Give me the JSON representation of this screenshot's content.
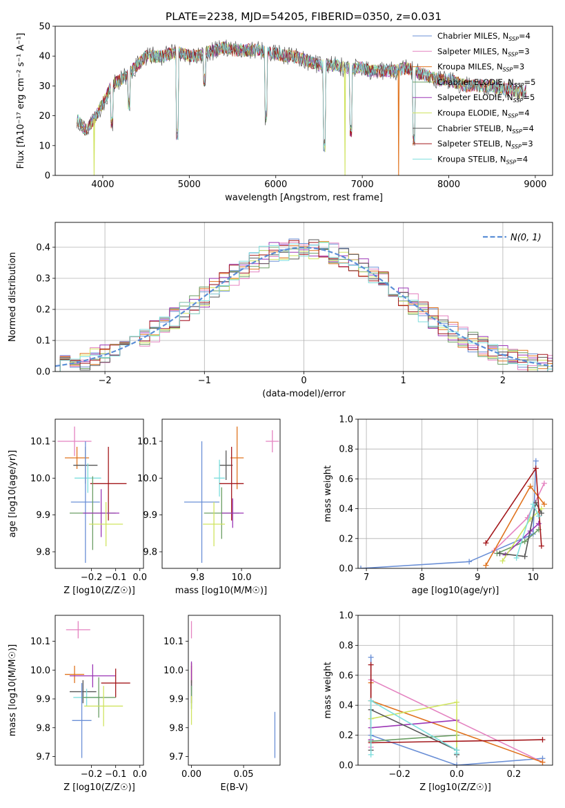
{
  "figure_title": "PLATE=2238, MJD=54205, FIBERID=0350, z=0.031",
  "colors": {
    "Chabrier MILES": "#6a8fd6",
    "Salpeter MILES": "#e482c0",
    "Kroupa MILES": "#e0731e",
    "Chabrier ELODIE": "#6a9e63",
    "Salpeter ELODIE": "#9b35b5",
    "Kroupa ELODIE": "#cfe35e",
    "Chabrier STELIB": "#555555",
    "Salpeter STELIB": "#a3171b",
    "Kroupa STELIB": "#7ddedd",
    "normal": "#5b8ed6",
    "grid": "#b0b0b0"
  },
  "chart_data": [
    {
      "id": "spectrum",
      "type": "line",
      "title": "PLATE=2238, MJD=54205, FIBERID=0350, z=0.031",
      "xlabel": "wavelength [Angstrom, rest frame]",
      "ylabel": "Flux [f_λ10^-17 erg cm^-2 s^-1 A^-1]",
      "xlim": [
        3450,
        9200
      ],
      "ylim": [
        0,
        50
      ],
      "xticks": [
        4000,
        5000,
        6000,
        7000,
        8000,
        9000
      ],
      "yticks": [
        0,
        10,
        20,
        30,
        40,
        50
      ],
      "grid": false,
      "legend": "right",
      "legend_entries": [
        {
          "name": "Chabrier MILES",
          "sub": "N",
          "ssp": "SSP",
          "n": "=4"
        },
        {
          "name": "Salpeter MILES",
          "sub": "N",
          "ssp": "SSP",
          "n": "=3"
        },
        {
          "name": "Kroupa MILES",
          "sub": "N",
          "ssp": "SSP",
          "n": "=3"
        },
        {
          "name": "Chabrier ELODIE",
          "sub": "N",
          "ssp": "SSP",
          "n": "=5"
        },
        {
          "name": "Salpeter ELODIE",
          "sub": "N",
          "ssp": "SSP",
          "n": "=5"
        },
        {
          "name": "Kroupa ELODIE",
          "sub": "N",
          "ssp": "SSP",
          "n": "=4"
        },
        {
          "name": "Chabrier STELIB",
          "sub": "N",
          "ssp": "SSP",
          "n": "=4"
        },
        {
          "name": "Salpeter STELIB",
          "sub": "N",
          "ssp": "SSP",
          "n": "=3"
        },
        {
          "name": "Kroupa STELIB",
          "sub": "N",
          "ssp": "SSP",
          "n": "=4"
        }
      ],
      "continuum": [
        [
          3700,
          19
        ],
        [
          3800,
          15
        ],
        [
          3900,
          19
        ],
        [
          4000,
          24
        ],
        [
          4100,
          30
        ],
        [
          4200,
          32
        ],
        [
          4300,
          34
        ],
        [
          4400,
          37
        ],
        [
          4500,
          40
        ],
        [
          4600,
          40
        ],
        [
          4700,
          40
        ],
        [
          4800,
          41
        ],
        [
          4900,
          41
        ],
        [
          5000,
          40
        ],
        [
          5100,
          40
        ],
        [
          5200,
          41
        ],
        [
          5300,
          42
        ],
        [
          5400,
          43
        ],
        [
          5500,
          42
        ],
        [
          5600,
          42
        ],
        [
          5700,
          42
        ],
        [
          5800,
          42
        ],
        [
          5900,
          41
        ],
        [
          6000,
          41
        ],
        [
          6100,
          40
        ],
        [
          6200,
          40
        ],
        [
          6300,
          39
        ],
        [
          6400,
          38
        ],
        [
          6500,
          37
        ],
        [
          6600,
          37
        ],
        [
          6700,
          37
        ],
        [
          6800,
          36
        ],
        [
          6900,
          36
        ],
        [
          7000,
          36
        ],
        [
          7100,
          35
        ],
        [
          7200,
          35
        ],
        [
          7300,
          35
        ],
        [
          7400,
          35
        ],
        [
          7500,
          36
        ],
        [
          7600,
          35
        ],
        [
          7700,
          34
        ],
        [
          7800,
          33
        ],
        [
          7900,
          32
        ],
        [
          8000,
          32
        ],
        [
          8100,
          31
        ],
        [
          8200,
          30
        ],
        [
          8300,
          30
        ],
        [
          8400,
          30
        ],
        [
          8500,
          30
        ],
        [
          8600,
          29
        ],
        [
          8700,
          29
        ],
        [
          8800,
          28
        ],
        [
          8900,
          28
        ]
      ],
      "absorption_features": [
        [
          3934,
          30
        ],
        [
          3968,
          25
        ],
        [
          4101,
          18
        ],
        [
          4304,
          24
        ],
        [
          4861,
          14
        ],
        [
          5175,
          32
        ],
        [
          5890,
          20
        ],
        [
          6563,
          10
        ],
        [
          6870,
          15
        ],
        [
          7600,
          12
        ]
      ],
      "spikes": [
        [
          3900,
          0
        ],
        [
          6800,
          0
        ],
        [
          7420,
          0
        ]
      ]
    },
    {
      "id": "residuals",
      "type": "histogram",
      "xlabel": "(data-model)/error",
      "ylabel": "Normed distribution",
      "xlim": [
        -2.5,
        2.5
      ],
      "ylim": [
        0,
        0.48
      ],
      "xticks": [
        -2,
        -1,
        0,
        1,
        2
      ],
      "yticks": [
        0.0,
        0.1,
        0.2,
        0.3,
        0.4
      ],
      "grid": true,
      "legend": "top-right",
      "normal_label": "N(0, 1)",
      "bin_width": 0.1
    },
    {
      "id": "age-vs-Z",
      "type": "scatter",
      "xlabel": "Z [log10(Z/Z☉)]",
      "ylabel": "age [log10(age/yr)]",
      "xlim": [
        -0.35,
        0.015
      ],
      "ylim": [
        9.755,
        10.16
      ],
      "xticks": [
        -0.2,
        -0.1,
        0.0
      ],
      "yticks": [
        9.8,
        9.9,
        10.0,
        10.1
      ],
      "grid": false,
      "points": [
        {
          "series": "Salpeter MILES",
          "x": -0.27,
          "xerr": 0.07,
          "y": 10.1,
          "yerr": 0.04
        },
        {
          "series": "Kroupa MILES",
          "x": -0.26,
          "xerr": 0.05,
          "y": 10.055,
          "yerr": 0.03
        },
        {
          "series": "Chabrier STELIB",
          "x": -0.225,
          "xerr": 0.05,
          "y": 10.035,
          "yerr": 0.05
        },
        {
          "series": "Kroupa STELIB",
          "x": -0.215,
          "xerr": 0.055,
          "y": 10.0,
          "yerr": 0.04
        },
        {
          "series": "Salpeter STELIB",
          "x": -0.13,
          "xerr": 0.075,
          "y": 9.985,
          "yerr": 0.1
        },
        {
          "series": "Chabrier MILES",
          "x": -0.225,
          "xerr": 0.06,
          "y": 9.935,
          "yerr": 0.165
        },
        {
          "series": "Chabrier ELODIE",
          "x": -0.195,
          "xerr": 0.095,
          "y": 9.905,
          "yerr": 0.1
        },
        {
          "series": "Salpeter ELODIE",
          "x": -0.16,
          "xerr": 0.075,
          "y": 9.905,
          "yerr": 0.065
        },
        {
          "series": "Kroupa ELODIE",
          "x": -0.14,
          "xerr": 0.07,
          "y": 9.875,
          "yerr": 0.06
        }
      ]
    },
    {
      "id": "age-vs-mass",
      "type": "scatter",
      "xlabel": "mass [log10(M/M☉)]",
      "ylabel": "",
      "xlim": [
        9.64,
        10.175
      ],
      "ylim": [
        9.755,
        10.16
      ],
      "xticks": [
        9.8,
        10.0
      ],
      "yticks": [
        9.8,
        9.9,
        10.0,
        10.1
      ],
      "grid": false,
      "points": [
        {
          "series": "Salpeter MILES",
          "x": 10.14,
          "xerr": 0.03,
          "y": 10.1,
          "yerr": 0.03
        },
        {
          "series": "Kroupa MILES",
          "x": 9.98,
          "xerr": 0.03,
          "y": 10.055,
          "yerr": 0.085
        },
        {
          "series": "Chabrier STELIB",
          "x": 9.93,
          "xerr": 0.03,
          "y": 10.035,
          "yerr": 0.04
        },
        {
          "series": "Kroupa STELIB",
          "x": 9.9,
          "xerr": 0.025,
          "y": 10.0,
          "yerr": 0.05
        },
        {
          "series": "Salpeter STELIB",
          "x": 9.955,
          "xerr": 0.055,
          "y": 9.985,
          "yerr": 0.1
        },
        {
          "series": "Chabrier MILES",
          "x": 9.82,
          "xerr": 0.08,
          "y": 9.935,
          "yerr": 0.165
        },
        {
          "series": "Chabrier ELODIE",
          "x": 9.91,
          "xerr": 0.08,
          "y": 9.905,
          "yerr": 0.07
        },
        {
          "series": "Salpeter ELODIE",
          "x": 9.96,
          "xerr": 0.05,
          "y": 9.905,
          "yerr": 0.04
        },
        {
          "series": "Kroupa ELODIE",
          "x": 9.875,
          "xerr": 0.05,
          "y": 9.875,
          "yerr": 0.06
        }
      ]
    },
    {
      "id": "weight-vs-age",
      "type": "line",
      "xlabel": "age [log10(age/yr)]",
      "ylabel": "mass weight",
      "xlim": [
        6.85,
        10.35
      ],
      "ylim": [
        0,
        1.0
      ],
      "xticks": [
        7,
        8,
        9,
        10
      ],
      "yticks": [
        0.0,
        0.2,
        0.4,
        0.6,
        0.8,
        1.0
      ],
      "grid": true,
      "series": [
        {
          "name": "Chabrier MILES",
          "x": [
            6.9,
            8.85,
            10.0,
            10.05
          ],
          "y": [
            0.0,
            0.045,
            0.23,
            0.72
          ]
        },
        {
          "name": "Salpeter MILES",
          "x": [
            9.3,
            9.9,
            10.2
          ],
          "y": [
            0.12,
            0.34,
            0.57
          ]
        },
        {
          "name": "Kroupa MILES",
          "x": [
            9.15,
            9.95,
            10.2
          ],
          "y": [
            0.02,
            0.55,
            0.43
          ]
        },
        {
          "name": "Chabrier ELODIE",
          "x": [
            9.35,
            9.85,
            10.1
          ],
          "y": [
            0.1,
            0.18,
            0.26
          ]
        },
        {
          "name": "Salpeter ELODIE",
          "x": [
            9.5,
            9.95,
            10.1
          ],
          "y": [
            0.09,
            0.25,
            0.3
          ]
        },
        {
          "name": "Kroupa ELODIE",
          "x": [
            9.45,
            9.95,
            10.15
          ],
          "y": [
            0.05,
            0.33,
            0.4
          ]
        },
        {
          "name": "Chabrier STELIB",
          "x": [
            9.4,
            9.85,
            10.05,
            10.15
          ],
          "y": [
            0.1,
            0.08,
            0.44,
            0.37
          ]
        },
        {
          "name": "Salpeter STELIB",
          "x": [
            9.15,
            10.05,
            10.15
          ],
          "y": [
            0.17,
            0.67,
            0.15
          ]
        },
        {
          "name": "Kroupa STELIB",
          "x": [
            9.7,
            10.0,
            10.1
          ],
          "y": [
            0.07,
            0.43,
            0.35
          ]
        }
      ]
    },
    {
      "id": "mass-vs-Z",
      "type": "scatter",
      "xlabel": "Z [log10(Z/Z☉)]",
      "ylabel": "mass [log10(M/M☉)]",
      "xlim": [
        -0.35,
        0.015
      ],
      "ylim": [
        9.67,
        10.19
      ],
      "xticks": [
        -0.2,
        -0.1,
        0.0
      ],
      "yticks": [
        9.7,
        9.8,
        9.9,
        10.0,
        10.1
      ],
      "grid": false,
      "points": [
        {
          "series": "Salpeter MILES",
          "x": -0.255,
          "xerr": 0.05,
          "y": 10.14,
          "yerr": 0.03
        },
        {
          "series": "Kroupa MILES",
          "x": -0.27,
          "xerr": 0.04,
          "y": 9.985,
          "yerr": 0.03
        },
        {
          "series": "Salpeter ELODIE",
          "x": -0.195,
          "xerr": 0.095,
          "y": 9.98,
          "yerr": 0.04
        },
        {
          "series": "Salpeter STELIB",
          "x": -0.1,
          "xerr": 0.06,
          "y": 9.955,
          "yerr": 0.05
        },
        {
          "series": "Chabrier STELIB",
          "x": -0.235,
          "xerr": 0.055,
          "y": 9.925,
          "yerr": 0.04
        },
        {
          "series": "Kroupa STELIB",
          "x": -0.22,
          "xerr": 0.055,
          "y": 9.905,
          "yerr": 0.03
        },
        {
          "series": "Chabrier ELODIE",
          "x": -0.17,
          "xerr": 0.07,
          "y": 9.905,
          "yerr": 0.07
        },
        {
          "series": "Kroupa ELODIE",
          "x": -0.15,
          "xerr": 0.08,
          "y": 9.875,
          "yerr": 0.07
        },
        {
          "series": "Chabrier MILES",
          "x": -0.24,
          "xerr": 0.04,
          "y": 9.825,
          "yerr": 0.13
        }
      ]
    },
    {
      "id": "mass-vs-EBV",
      "type": "scatter",
      "xlabel": "E(B-V)",
      "ylabel": "",
      "xlim": [
        -0.003,
        0.085
      ],
      "ylim": [
        9.67,
        10.19
      ],
      "xticks": [
        0.0,
        0.05
      ],
      "yticks": [
        9.7,
        9.8,
        9.9,
        10.0,
        10.1
      ],
      "grid": false,
      "points": [
        {
          "series": "Salpeter MILES",
          "x": 0.0,
          "xerr": 0.0,
          "y": 10.14,
          "yerr": 0.03
        },
        {
          "series": "Kroupa MILES",
          "x": 0.0,
          "xerr": 0.0,
          "y": 9.985,
          "yerr": 0.03
        },
        {
          "series": "Salpeter STELIB",
          "x": 0.0,
          "xerr": 0.0,
          "y": 9.955,
          "yerr": 0.07
        },
        {
          "series": "Salpeter ELODIE",
          "x": 0.0,
          "xerr": 0.0,
          "y": 9.98,
          "yerr": 0.05
        },
        {
          "series": "Chabrier STELIB",
          "x": 0.0,
          "xerr": 0.0,
          "y": 9.925,
          "yerr": 0.04
        },
        {
          "series": "Kroupa STELIB",
          "x": 0.0,
          "xerr": 0.0,
          "y": 9.905,
          "yerr": 0.04
        },
        {
          "series": "Chabrier ELODIE",
          "x": 0.0,
          "xerr": 0.0,
          "y": 9.905,
          "yerr": 0.04
        },
        {
          "series": "Kroupa ELODIE",
          "x": 0.0,
          "xerr": 0.0,
          "y": 9.86,
          "yerr": 0.05
        },
        {
          "series": "Chabrier MILES",
          "x": 0.08,
          "xerr": 0.0,
          "y": 9.775,
          "yerr": 0.08
        }
      ]
    },
    {
      "id": "weight-vs-Z",
      "type": "line",
      "xlabel": "Z [log10(Z/Z☉)]",
      "ylabel": "mass weight",
      "xlim": [
        -0.345,
        0.335
      ],
      "ylim": [
        0,
        1.0
      ],
      "xticks": [
        -0.2,
        0.0,
        0.2
      ],
      "yticks": [
        0.0,
        0.2,
        0.4,
        0.6,
        0.8,
        1.0
      ],
      "grid": true,
      "series": [
        {
          "name": "Chabrier MILES",
          "x": [
            -0.3,
            -0.3,
            0.0,
            0.3
          ],
          "y": [
            0.72,
            0.2,
            0.0,
            0.045
          ]
        },
        {
          "name": "Salpeter MILES",
          "x": [
            -0.3,
            -0.3,
            0.3
          ],
          "y": [
            0.12,
            0.57,
            0.02
          ]
        },
        {
          "name": "Kroupa MILES",
          "x": [
            -0.3,
            -0.3,
            0.3
          ],
          "y": [
            0.55,
            0.43,
            0.02
          ]
        },
        {
          "name": "Chabrier ELODIE",
          "x": [
            -0.3,
            0.0,
            0.0
          ],
          "y": [
            0.16,
            0.2,
            0.1
          ]
        },
        {
          "name": "Salpeter ELODIE",
          "x": [
            -0.3,
            -0.3,
            0.0
          ],
          "y": [
            0.17,
            0.25,
            0.3
          ]
        },
        {
          "name": "Kroupa ELODIE",
          "x": [
            -0.3,
            0.0,
            0.0
          ],
          "y": [
            0.31,
            0.42,
            0.1
          ]
        },
        {
          "name": "Chabrier STELIB",
          "x": [
            -0.3,
            -0.3,
            0.0,
            0.0
          ],
          "y": [
            0.1,
            0.37,
            0.1,
            0.07
          ]
        },
        {
          "name": "Salpeter STELIB",
          "x": [
            -0.3,
            -0.3,
            0.3
          ],
          "y": [
            0.67,
            0.15,
            0.17
          ]
        },
        {
          "name": "Kroupa STELIB",
          "x": [
            -0.3,
            -0.3,
            0.0,
            0.0
          ],
          "y": [
            0.07,
            0.43,
            0.1,
            0.08
          ]
        }
      ]
    }
  ]
}
